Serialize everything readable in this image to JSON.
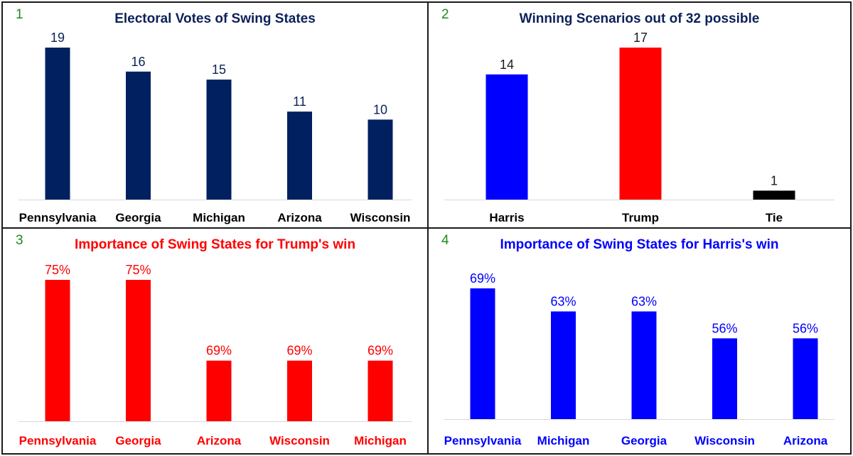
{
  "chart_data": [
    {
      "panel_number": "1",
      "type": "bar",
      "title": "Electoral Votes of Swing States",
      "title_color": "#0b2159",
      "bar_color": "#002060",
      "label_color": "#0b2159",
      "category_color": "#000000",
      "categories": [
        "Pennsylvania",
        "Georgia",
        "Michigan",
        "Arizona",
        "Wisconsin"
      ],
      "values": [
        19,
        16,
        15,
        11,
        10
      ],
      "value_labels": [
        "19",
        "16",
        "15",
        "11",
        "10"
      ],
      "ylim": [
        0,
        19
      ],
      "grid": false
    },
    {
      "panel_number": "2",
      "type": "bar",
      "title": "Winning Scenarios out of 32 possible",
      "title_color": "#0b2159",
      "bar_colors": [
        "#0000ff",
        "#ff0000",
        "#000000"
      ],
      "label_color": "#1a1a1a",
      "category_color": "#000000",
      "categories": [
        "Harris",
        "Trump",
        "Tie"
      ],
      "values": [
        14,
        17,
        1
      ],
      "value_labels": [
        "14",
        "17",
        "1"
      ],
      "ylim": [
        0,
        17
      ],
      "grid": false
    },
    {
      "panel_number": "3",
      "type": "bar",
      "title": "Importance of Swing States for Trump's win",
      "title_color": "#ff0000",
      "bar_color": "#ff0000",
      "label_color": "#ff0000",
      "category_color": "#ff0000",
      "categories": [
        "Pennsylvania",
        "Georgia",
        "Arizona",
        "Wisconsin",
        "Michigan"
      ],
      "values": [
        75,
        75,
        69,
        69,
        69
      ],
      "value_labels": [
        "75%",
        "75%",
        "69%",
        "69%",
        "69%"
      ],
      "ylim": [
        64.5,
        75
      ],
      "grid": false
    },
    {
      "panel_number": "4",
      "type": "bar",
      "title": "Importance of Swing States for Harris's win",
      "title_color": "#0000ff",
      "bar_color": "#0000ff",
      "label_color": "#0000ff",
      "category_color": "#0000ff",
      "categories": [
        "Pennsylvania",
        "Michigan",
        "Georgia",
        "Wisconsin",
        "Arizona"
      ],
      "values": [
        69,
        63,
        63,
        56,
        56
      ],
      "value_labels": [
        "69%",
        "63%",
        "63%",
        "56%",
        "56%"
      ],
      "ylim": [
        35,
        69
      ],
      "grid": false
    }
  ]
}
